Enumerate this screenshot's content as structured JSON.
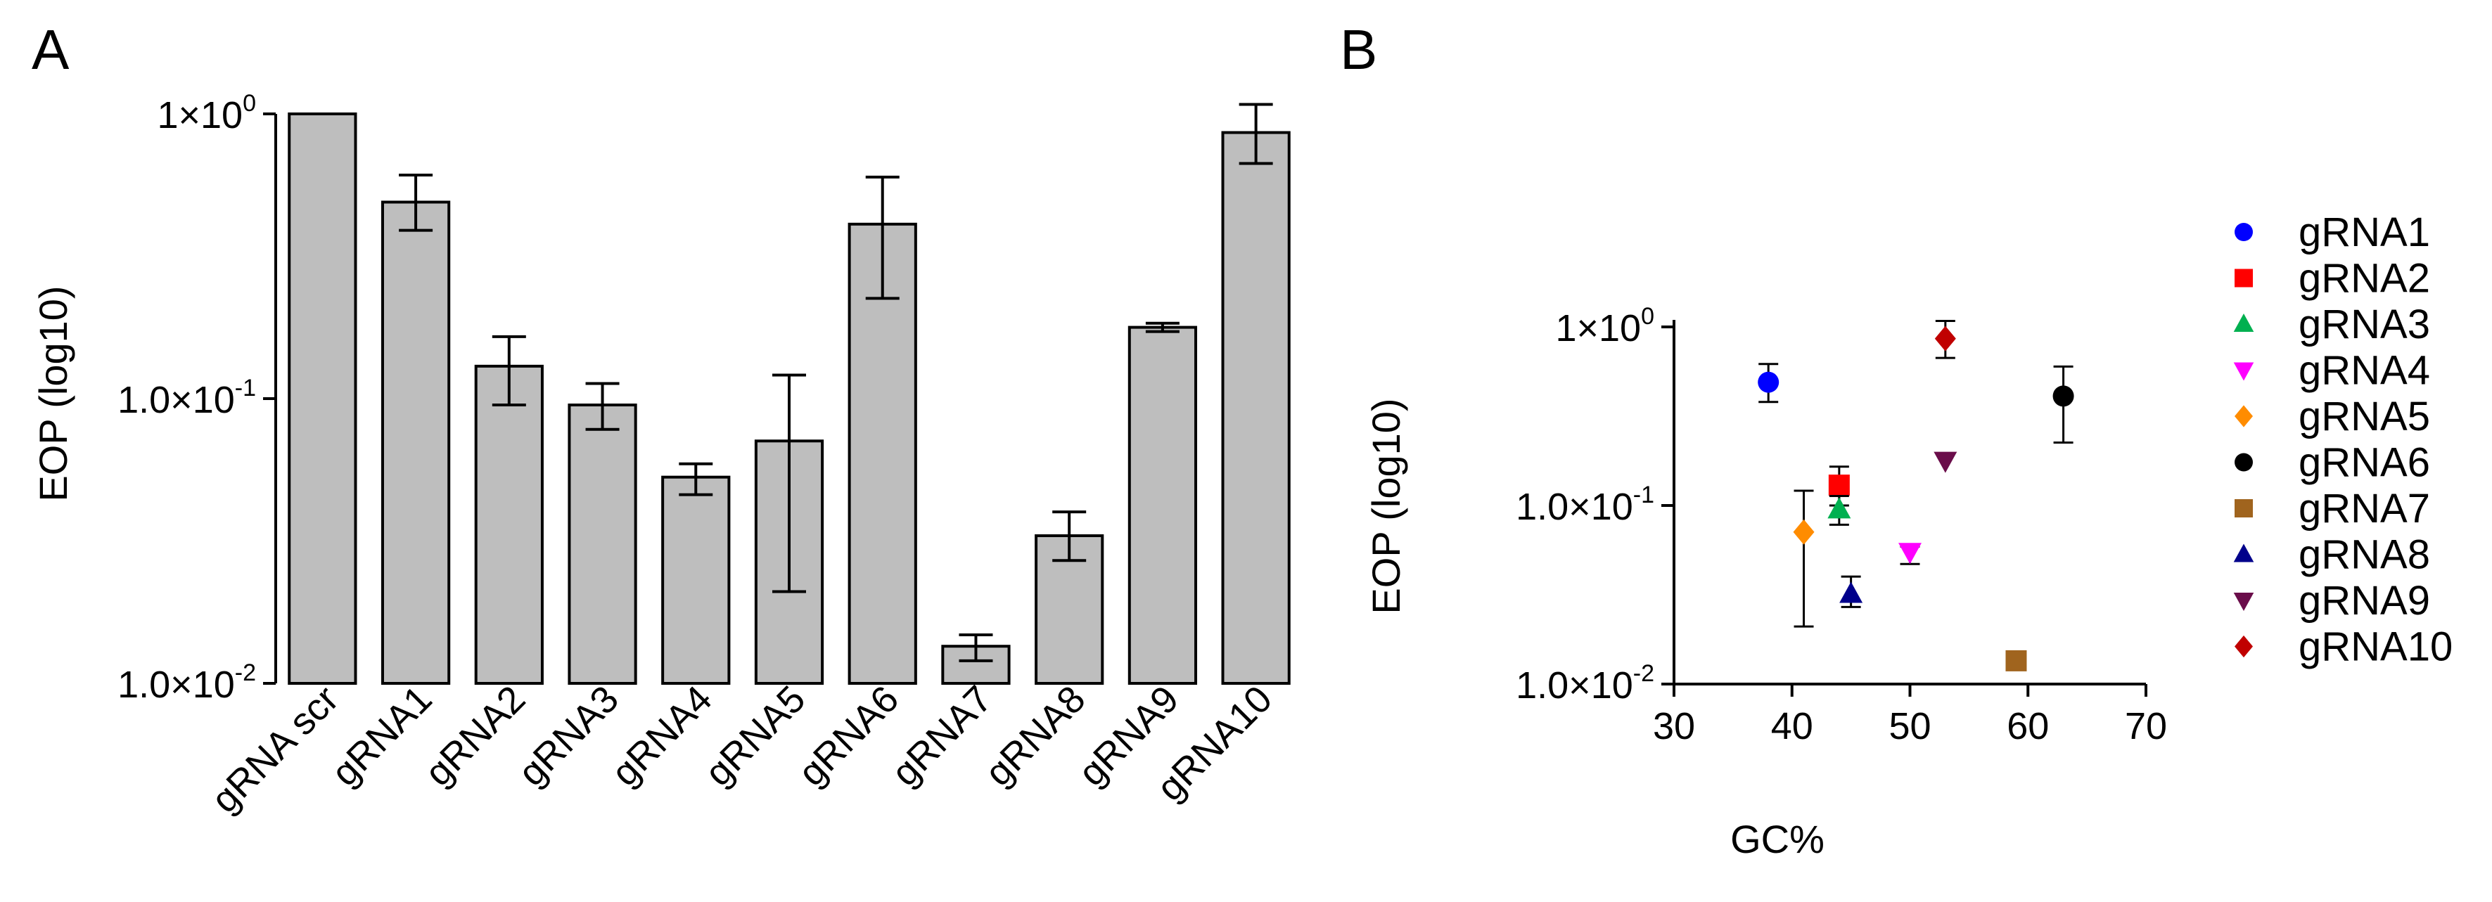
{
  "panels": {
    "A": {
      "label": "A"
    },
    "B": {
      "label": "B"
    }
  },
  "chart_data": [
    {
      "type": "bar",
      "panel": "A",
      "ylabel": "EOP (log10)",
      "xlabel": "",
      "yscale": "log10",
      "ylim": [
        0.01,
        1.0
      ],
      "yticks": [
        {
          "value": 1.0,
          "mantissa": "1×10",
          "exponent": "0"
        },
        {
          "value": 0.1,
          "mantissa": "1.0×10",
          "exponent": "-1"
        },
        {
          "value": 0.01,
          "mantissa": "1.0×10",
          "exponent": "-2"
        }
      ],
      "categories": [
        "gRNA scr",
        "gRNA1",
        "gRNA2",
        "gRNA3",
        "gRNA4",
        "gRNA5",
        "gRNA6",
        "gRNA7",
        "gRNA8",
        "gRNA9",
        "gRNA10"
      ],
      "values": [
        1.0,
        0.49,
        0.13,
        0.095,
        0.053,
        0.071,
        0.41,
        0.0135,
        0.033,
        0.178,
        0.86
      ],
      "error_low": [
        null,
        0.39,
        0.095,
        0.078,
        0.046,
        0.021,
        0.225,
        0.012,
        0.027,
        0.172,
        0.67
      ],
      "error_high": [
        null,
        0.61,
        0.165,
        0.113,
        0.059,
        0.121,
        0.6,
        0.0148,
        0.04,
        0.184,
        1.08
      ],
      "bar_color": "#bebebe",
      "edge_color": "#000000",
      "grid": false
    },
    {
      "type": "scatter",
      "panel": "B",
      "xlabel": "GC%",
      "ylabel": "EOP (log10)",
      "xlim": [
        30,
        70
      ],
      "xticks": [
        30,
        40,
        50,
        60,
        70
      ],
      "yscale": "log10",
      "ylim": [
        0.01,
        1.0
      ],
      "yticks": [
        {
          "value": 1.0,
          "mantissa": "1×10",
          "exponent": "0"
        },
        {
          "value": 0.1,
          "mantissa": "1.0×10",
          "exponent": "-1"
        },
        {
          "value": 0.01,
          "mantissa": "1.0×10",
          "exponent": "-2"
        }
      ],
      "legend_position": "right",
      "grid": false,
      "series": [
        {
          "name": "gRNA1",
          "x": 38,
          "y": 0.49,
          "err_low": 0.38,
          "err_high": 0.62,
          "color": "#0000ff",
          "marker": "circle"
        },
        {
          "name": "gRNA2",
          "x": 44,
          "y": 0.13,
          "err_low": 0.1,
          "err_high": 0.165,
          "color": "#ff0000",
          "marker": "square"
        },
        {
          "name": "gRNA3",
          "x": 44,
          "y": 0.095,
          "err_low": 0.078,
          "err_high": 0.113,
          "color": "#00b050",
          "marker": "triangle-up"
        },
        {
          "name": "gRNA4",
          "x": 50,
          "y": 0.055,
          "err_low": 0.047,
          "err_high": 0.059,
          "color": "#ff00ff",
          "marker": "triangle-down"
        },
        {
          "name": "gRNA5",
          "x": 41,
          "y": 0.071,
          "err_low": 0.021,
          "err_high": 0.121,
          "color": "#ff8c00",
          "marker": "diamond"
        },
        {
          "name": "gRNA6",
          "x": 63,
          "y": 0.41,
          "err_low": 0.225,
          "err_high": 0.6,
          "color": "#000000",
          "marker": "circle"
        },
        {
          "name": "gRNA7",
          "x": 59,
          "y": 0.0135,
          "err_low": 0.0135,
          "err_high": 0.0135,
          "color": "#a0641e",
          "marker": "square"
        },
        {
          "name": "gRNA8",
          "x": 45,
          "y": 0.032,
          "err_low": 0.027,
          "err_high": 0.04,
          "color": "#00008b",
          "marker": "triangle-up"
        },
        {
          "name": "gRNA9",
          "x": 53,
          "y": 0.178,
          "err_low": 0.178,
          "err_high": 0.178,
          "color": "#6a0d4a",
          "marker": "triangle-down"
        },
        {
          "name": "gRNA10",
          "x": 53,
          "y": 0.86,
          "err_low": 0.67,
          "err_high": 1.08,
          "color": "#c00000",
          "marker": "diamond"
        }
      ]
    }
  ]
}
